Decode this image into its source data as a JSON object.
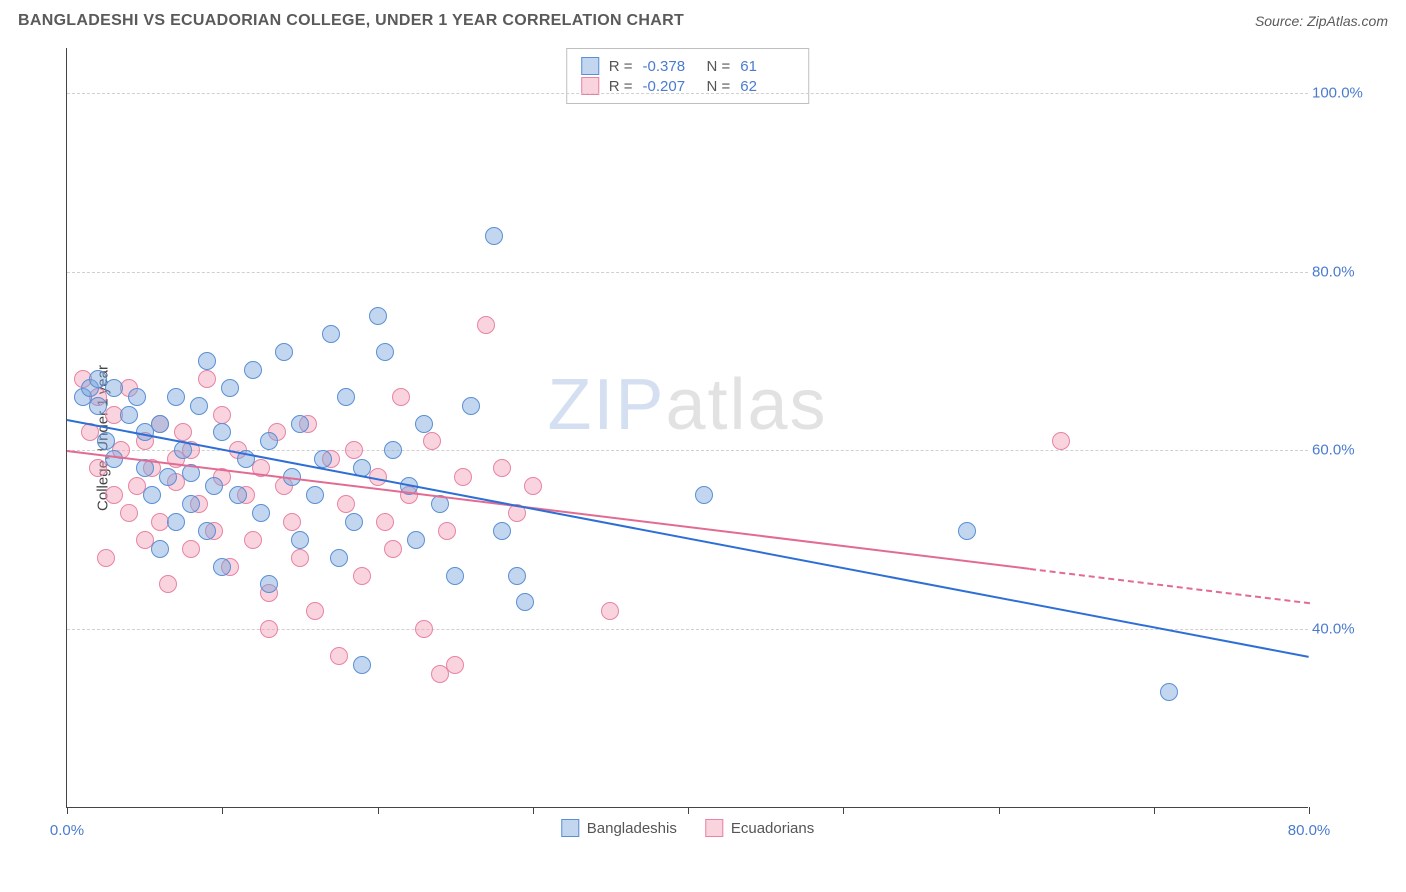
{
  "title": "BANGLADESHI VS ECUADORIAN COLLEGE, UNDER 1 YEAR CORRELATION CHART",
  "source_label": "Source:",
  "source_name": "ZipAtlas.com",
  "ylabel": "College, Under 1 year",
  "watermark_a": "ZIP",
  "watermark_b": "atlas",
  "chart": {
    "type": "scatter",
    "xlim": [
      0,
      80
    ],
    "ylim": [
      20,
      105
    ],
    "xticks": [
      0,
      10,
      20,
      30,
      40,
      50,
      60,
      70,
      80
    ],
    "xlabels": {
      "0": "0.0%",
      "80": "80.0%"
    },
    "yticks": [
      40,
      60,
      80,
      100
    ],
    "ylabels": {
      "40": "40.0%",
      "60": "60.0%",
      "80": "80.0%",
      "100": "100.0%"
    },
    "grid_color": "#d0d0d0",
    "background_color": "#ffffff",
    "axis_color": "#444444",
    "tick_label_color": "#4a7bd0",
    "point_radius": 9,
    "series": {
      "bangladeshis": {
        "label": "Bangladeshis",
        "fill": "rgba(120,165,220,0.45)",
        "stroke": "#5a8fd6",
        "trend_color": "#2e6fd6",
        "R": "-0.378",
        "N": "61",
        "trend": {
          "x1": 0,
          "y1": 63.5,
          "x2": 80,
          "y2": 37,
          "solid_until_x": 80
        },
        "points": [
          [
            1,
            66
          ],
          [
            1.5,
            67
          ],
          [
            2,
            65
          ],
          [
            2,
            68
          ],
          [
            2.5,
            61
          ],
          [
            3,
            67
          ],
          [
            3,
            59
          ],
          [
            4,
            64
          ],
          [
            4.5,
            66
          ],
          [
            5,
            58
          ],
          [
            5,
            62
          ],
          [
            5.5,
            55
          ],
          [
            6,
            63
          ],
          [
            6,
            49
          ],
          [
            6.5,
            57
          ],
          [
            7,
            66
          ],
          [
            7,
            52
          ],
          [
            7.5,
            60
          ],
          [
            8,
            54
          ],
          [
            8,
            57.5
          ],
          [
            8.5,
            65
          ],
          [
            9,
            70
          ],
          [
            9,
            51
          ],
          [
            9.5,
            56
          ],
          [
            10,
            62
          ],
          [
            10,
            47
          ],
          [
            10.5,
            67
          ],
          [
            11,
            55
          ],
          [
            11.5,
            59
          ],
          [
            12,
            69
          ],
          [
            12.5,
            53
          ],
          [
            13,
            61
          ],
          [
            13,
            45
          ],
          [
            14,
            71
          ],
          [
            14.5,
            57
          ],
          [
            15,
            63
          ],
          [
            15,
            50
          ],
          [
            16,
            55
          ],
          [
            16.5,
            59
          ],
          [
            17,
            73
          ],
          [
            17.5,
            48
          ],
          [
            18,
            66
          ],
          [
            18.5,
            52
          ],
          [
            19,
            58
          ],
          [
            19,
            36
          ],
          [
            20,
            75
          ],
          [
            20.5,
            71
          ],
          [
            21,
            60
          ],
          [
            22,
            56
          ],
          [
            22.5,
            50
          ],
          [
            23,
            63
          ],
          [
            24,
            54
          ],
          [
            25,
            46
          ],
          [
            26,
            65
          ],
          [
            27.5,
            84
          ],
          [
            28,
            51
          ],
          [
            29,
            46
          ],
          [
            29.5,
            43
          ],
          [
            41,
            55
          ],
          [
            58,
            51
          ],
          [
            71,
            33
          ]
        ]
      },
      "ecuadorians": {
        "label": "Ecuadorians",
        "fill": "rgba(240,150,175,0.42)",
        "stroke": "#e884a3",
        "trend_color": "#e26b94",
        "R": "-0.207",
        "N": "62",
        "trend": {
          "x1": 0,
          "y1": 60,
          "x2": 80,
          "y2": 43,
          "solid_until_x": 62
        },
        "points": [
          [
            1,
            68
          ],
          [
            1.5,
            62
          ],
          [
            2,
            66
          ],
          [
            2,
            58
          ],
          [
            2.5,
            48
          ],
          [
            3,
            64
          ],
          [
            3,
            55
          ],
          [
            3.5,
            60
          ],
          [
            4,
            53
          ],
          [
            4,
            67
          ],
          [
            4.5,
            56
          ],
          [
            5,
            61
          ],
          [
            5,
            50
          ],
          [
            5.5,
            58
          ],
          [
            6,
            63
          ],
          [
            6,
            52
          ],
          [
            6.5,
            45
          ],
          [
            7,
            59
          ],
          [
            7,
            56.5
          ],
          [
            7.5,
            62
          ],
          [
            8,
            49
          ],
          [
            8,
            60
          ],
          [
            8.5,
            54
          ],
          [
            9,
            68
          ],
          [
            9.5,
            51
          ],
          [
            10,
            57
          ],
          [
            10,
            64
          ],
          [
            10.5,
            47
          ],
          [
            11,
            60
          ],
          [
            11.5,
            55
          ],
          [
            12,
            50
          ],
          [
            12.5,
            58
          ],
          [
            13,
            44
          ],
          [
            13,
            40
          ],
          [
            13.5,
            62
          ],
          [
            14,
            56
          ],
          [
            14.5,
            52
          ],
          [
            15,
            48
          ],
          [
            15.5,
            63
          ],
          [
            16,
            42
          ],
          [
            17,
            59
          ],
          [
            17.5,
            37
          ],
          [
            18,
            54
          ],
          [
            18.5,
            60
          ],
          [
            19,
            46
          ],
          [
            20,
            57
          ],
          [
            20.5,
            52
          ],
          [
            21,
            49
          ],
          [
            21.5,
            66
          ],
          [
            22,
            55
          ],
          [
            23,
            40
          ],
          [
            23.5,
            61
          ],
          [
            24,
            35
          ],
          [
            24.5,
            51
          ],
          [
            25,
            36
          ],
          [
            25.5,
            57
          ],
          [
            27,
            74
          ],
          [
            28,
            58
          ],
          [
            29,
            53
          ],
          [
            30,
            56
          ],
          [
            35,
            42
          ],
          [
            64,
            61
          ]
        ]
      }
    }
  },
  "stat_box": {
    "r_label": "R =",
    "n_label": "N ="
  }
}
